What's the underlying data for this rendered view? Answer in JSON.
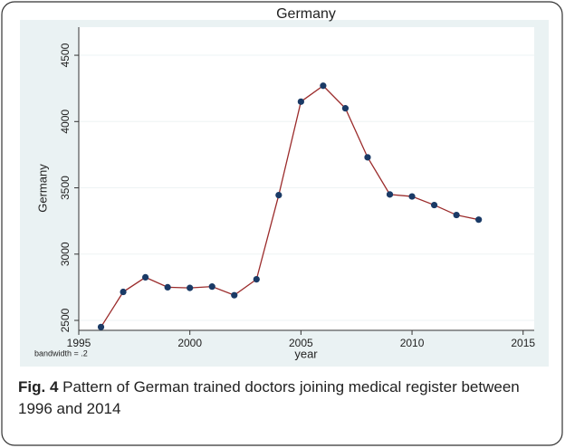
{
  "chart_data": {
    "type": "line",
    "title": "Germany",
    "x_label": "year",
    "y_label": "Germany",
    "note": "bandwidth = .2",
    "x": [
      1996,
      1997,
      1998,
      1999,
      2000,
      2001,
      2002,
      2003,
      2004,
      2005,
      2006,
      2007,
      2008,
      2009,
      2010,
      2011,
      2012,
      2013
    ],
    "series": [
      {
        "name": "Germany",
        "color": "#9b2b2b",
        "marker_color": "#1a3a66",
        "values": [
          2450,
          2715,
          2825,
          2750,
          2745,
          2755,
          2690,
          2810,
          3445,
          4150,
          4270,
          4100,
          3730,
          3450,
          3435,
          3370,
          3295,
          3260
        ]
      }
    ],
    "xlim": [
      1995,
      2015.5
    ],
    "xticks": [
      1995,
      2000,
      2005,
      2010,
      2015
    ],
    "ylim": [
      2425,
      4712
    ],
    "yticks": [
      2500,
      3000,
      3500,
      4000,
      4500
    ],
    "grid": true
  },
  "caption": {
    "label": "Fig. 4",
    "text": "Pattern of German trained doctors joining medical register between 1996 and 2014"
  }
}
